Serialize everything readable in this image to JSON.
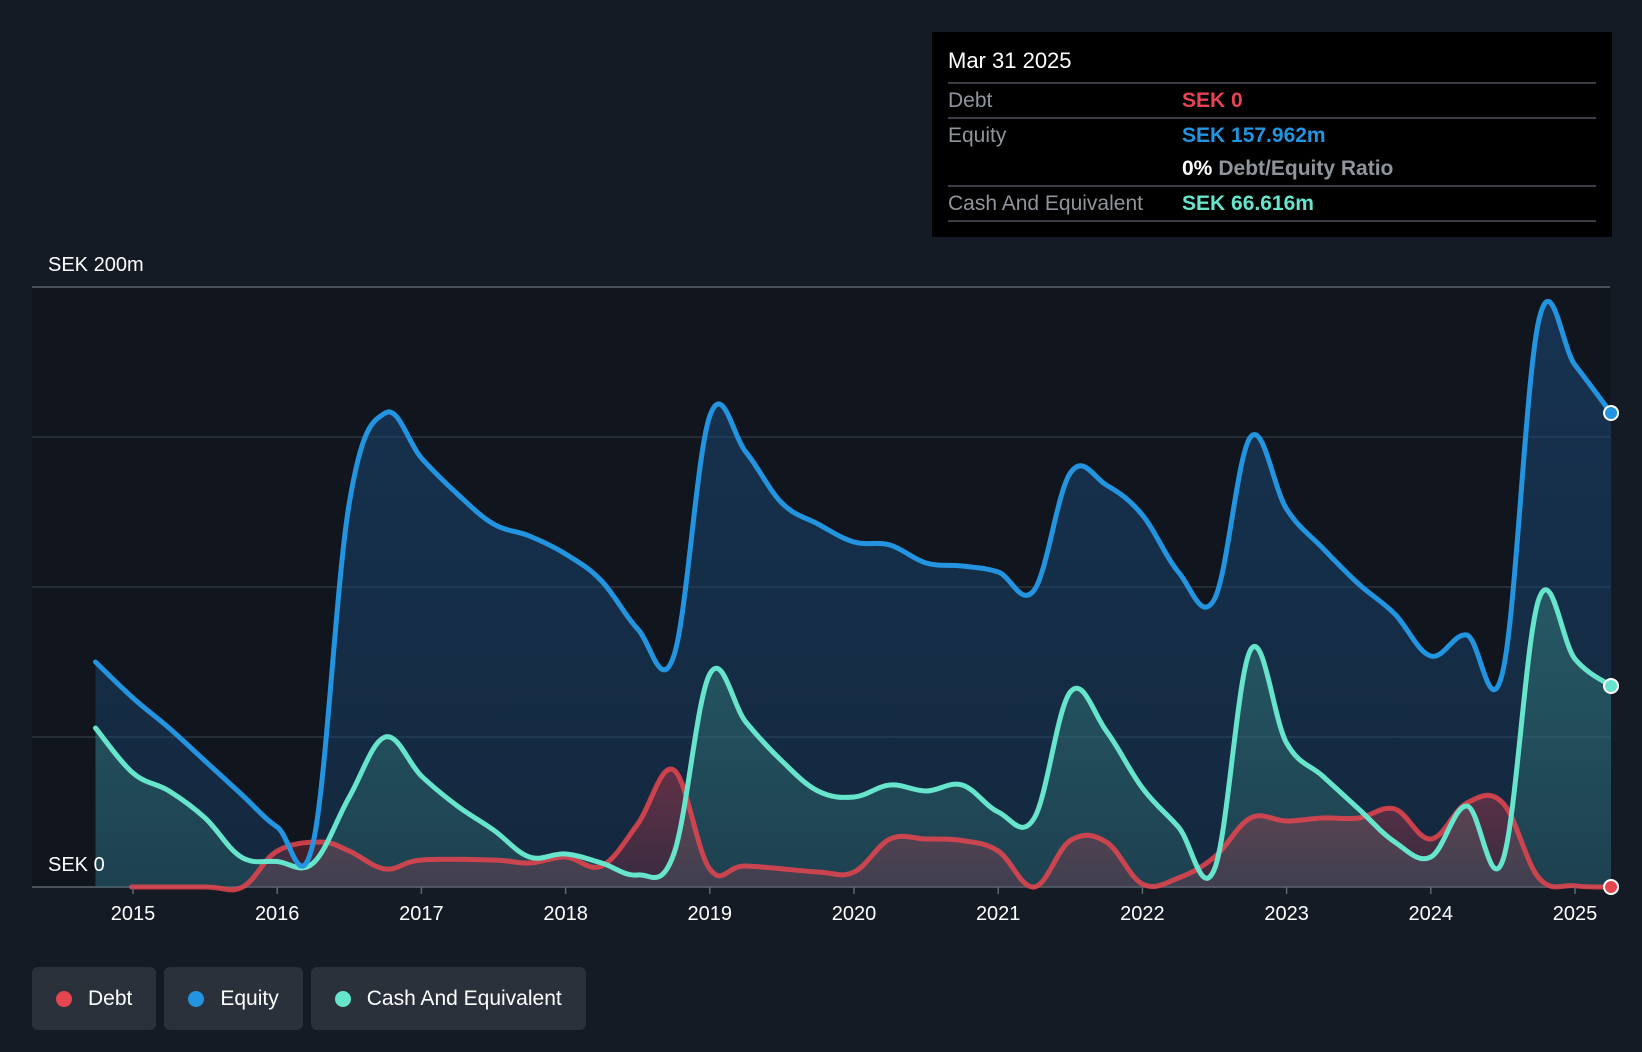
{
  "chart_data": {
    "type": "area",
    "currency_prefix": "SEK",
    "y_top_label": "SEK 200m",
    "y_bottom_label": "SEK 0",
    "ylim": [
      0,
      200
    ],
    "grid": true,
    "x_ticks": [
      "2015",
      "2016",
      "2017",
      "2018",
      "2019",
      "2020",
      "2021",
      "2022",
      "2023",
      "2024",
      "2025"
    ],
    "series": [
      {
        "name": "Debt",
        "color": "#e5454f",
        "points": [
          [
            2014.99,
            0
          ],
          [
            2015.5,
            0
          ],
          [
            2015.76,
            0
          ],
          [
            2016.0,
            12
          ],
          [
            2016.3,
            15
          ],
          [
            2016.5,
            12
          ],
          [
            2016.75,
            6
          ],
          [
            2017.0,
            9
          ],
          [
            2017.5,
            9
          ],
          [
            2017.75,
            8
          ],
          [
            2018.0,
            10
          ],
          [
            2018.25,
            7
          ],
          [
            2018.5,
            21
          ],
          [
            2018.75,
            39
          ],
          [
            2019.0,
            6
          ],
          [
            2019.25,
            7
          ],
          [
            2019.75,
            5
          ],
          [
            2020.0,
            5
          ],
          [
            2020.25,
            16
          ],
          [
            2020.5,
            16
          ],
          [
            2020.75,
            15.5
          ],
          [
            2021.0,
            12
          ],
          [
            2021.25,
            0
          ],
          [
            2021.5,
            15.5
          ],
          [
            2021.75,
            15
          ],
          [
            2022.0,
            1
          ],
          [
            2022.25,
            3
          ],
          [
            2022.5,
            10
          ],
          [
            2022.75,
            23
          ],
          [
            2023.0,
            22
          ],
          [
            2023.25,
            23
          ],
          [
            2023.5,
            23
          ],
          [
            2023.75,
            26
          ],
          [
            2024.0,
            16
          ],
          [
            2024.25,
            28
          ],
          [
            2024.5,
            28
          ],
          [
            2024.75,
            3
          ],
          [
            2025.0,
            0.4
          ],
          [
            2025.25,
            0
          ]
        ]
      },
      {
        "name": "Equity",
        "color": "#2394df",
        "points": [
          [
            2014.74,
            75
          ],
          [
            2015.0,
            63
          ],
          [
            2015.25,
            53
          ],
          [
            2015.5,
            42
          ],
          [
            2015.75,
            31
          ],
          [
            2016.0,
            20
          ],
          [
            2016.25,
            15
          ],
          [
            2016.5,
            128
          ],
          [
            2016.75,
            158
          ],
          [
            2017.0,
            143
          ],
          [
            2017.25,
            131
          ],
          [
            2017.5,
            121
          ],
          [
            2017.75,
            117
          ],
          [
            2018.0,
            111
          ],
          [
            2018.25,
            102
          ],
          [
            2018.5,
            86
          ],
          [
            2018.75,
            77
          ],
          [
            2019.0,
            157
          ],
          [
            2019.25,
            145
          ],
          [
            2019.5,
            128
          ],
          [
            2019.75,
            121
          ],
          [
            2020.0,
            115
          ],
          [
            2020.25,
            114
          ],
          [
            2020.5,
            108
          ],
          [
            2020.75,
            107
          ],
          [
            2021.0,
            105
          ],
          [
            2021.25,
            99
          ],
          [
            2021.5,
            138
          ],
          [
            2021.75,
            134
          ],
          [
            2022.0,
            124
          ],
          [
            2022.25,
            105
          ],
          [
            2022.5,
            96
          ],
          [
            2022.75,
            150
          ],
          [
            2023.0,
            126
          ],
          [
            2023.25,
            113
          ],
          [
            2023.5,
            101
          ],
          [
            2023.75,
            91
          ],
          [
            2024.0,
            77
          ],
          [
            2024.25,
            84
          ],
          [
            2024.5,
            72
          ],
          [
            2024.75,
            189
          ],
          [
            2025.0,
            174
          ],
          [
            2025.25,
            158
          ]
        ]
      },
      {
        "name": "Cash And Equivalent",
        "color": "#67e4cc",
        "points": [
          [
            2014.74,
            53
          ],
          [
            2015.0,
            38
          ],
          [
            2015.25,
            32
          ],
          [
            2015.5,
            23
          ],
          [
            2015.75,
            10
          ],
          [
            2016.0,
            8.5
          ],
          [
            2016.25,
            8
          ],
          [
            2016.5,
            30
          ],
          [
            2016.75,
            50
          ],
          [
            2017.0,
            37
          ],
          [
            2017.25,
            27
          ],
          [
            2017.5,
            19
          ],
          [
            2017.75,
            10
          ],
          [
            2018.0,
            11
          ],
          [
            2018.25,
            8
          ],
          [
            2018.5,
            4
          ],
          [
            2018.75,
            11
          ],
          [
            2019.0,
            71
          ],
          [
            2019.25,
            55
          ],
          [
            2019.5,
            42
          ],
          [
            2019.75,
            32
          ],
          [
            2020.0,
            30
          ],
          [
            2020.25,
            34
          ],
          [
            2020.5,
            32
          ],
          [
            2020.75,
            34
          ],
          [
            2021.0,
            25
          ],
          [
            2021.25,
            23
          ],
          [
            2021.5,
            65
          ],
          [
            2021.75,
            52
          ],
          [
            2022.0,
            33
          ],
          [
            2022.25,
            20
          ],
          [
            2022.5,
            6
          ],
          [
            2022.75,
            79
          ],
          [
            2023.0,
            48
          ],
          [
            2023.25,
            37
          ],
          [
            2023.5,
            26
          ],
          [
            2023.75,
            15
          ],
          [
            2024.0,
            10
          ],
          [
            2024.25,
            27
          ],
          [
            2024.5,
            9
          ],
          [
            2024.75,
            96
          ],
          [
            2025.0,
            76
          ],
          [
            2025.25,
            67
          ]
        ]
      }
    ],
    "tooltip": {
      "date": "Mar 31 2025",
      "rows": [
        {
          "label": "Debt",
          "value": "SEK 0",
          "color": "#e5454f"
        },
        {
          "label": "Equity",
          "value": "SEK 157.962m",
          "color": "#2394df"
        },
        {
          "label": "Cash And Equivalent",
          "value": "SEK 66.616m",
          "color": "#67e4cc"
        }
      ],
      "ratio_pct": "0%",
      "ratio_label": "Debt/Equity Ratio"
    },
    "legend": [
      {
        "label": "Debt",
        "color": "#e5454f"
      },
      {
        "label": "Equity",
        "color": "#2394df"
      },
      {
        "label": "Cash And Equivalent",
        "color": "#67e4cc"
      }
    ]
  }
}
